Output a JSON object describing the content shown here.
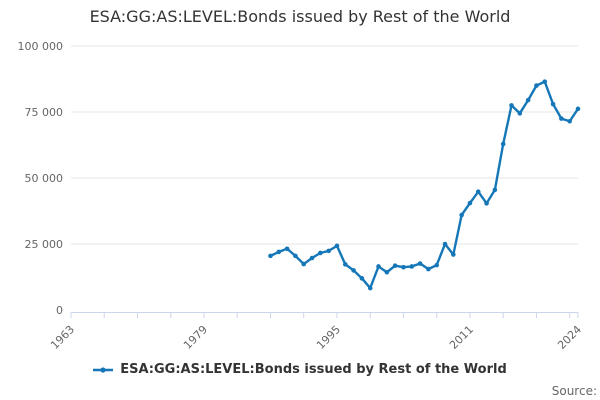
{
  "title": "ESA:GG:AS:LEVEL:Bonds issued by Rest of the World",
  "legend": {
    "label": "ESA:GG:AS:LEVEL:Bonds issued by Rest of the World"
  },
  "source": {
    "label": "Source:"
  },
  "colors": {
    "series": "#1577b8",
    "gridline": "#e6e6e6",
    "axis": "#ccd6eb",
    "tick_label": "#666666",
    "title": "#333333"
  },
  "chart_data": {
    "type": "line",
    "title": "ESA:GG:AS:LEVEL:Bonds issued by Rest of the World",
    "xlabel": "",
    "ylabel": "",
    "grid": "horizontal",
    "legend_position": "bottom",
    "marker": "circle",
    "xlim": [
      1963,
      2024
    ],
    "ylim": [
      0,
      100000
    ],
    "yticks": [
      0,
      25000,
      50000,
      75000,
      100000
    ],
    "ytick_labels": [
      "0",
      "25 000",
      "50 000",
      "75 000",
      "100 000"
    ],
    "xtick_interval": 4,
    "xticks_labeled": [
      1963,
      1979,
      1995,
      2011,
      2024
    ],
    "x": [
      1987,
      1988,
      1989,
      1990,
      1991,
      1992,
      1993,
      1994,
      1995,
      1996,
      1997,
      1998,
      1999,
      2000,
      2001,
      2002,
      2003,
      2004,
      2005,
      2006,
      2007,
      2008,
      2009,
      2010,
      2011,
      2012,
      2013,
      2014,
      2015,
      2016,
      2017,
      2018,
      2019,
      2020,
      2021,
      2022,
      2023,
      2024
    ],
    "series": [
      {
        "name": "ESA:GG:AS:LEVEL:Bonds issued by Rest of the World",
        "values": [
          20500,
          22000,
          23200,
          20500,
          17400,
          19700,
          21600,
          22400,
          24300,
          17300,
          15000,
          12000,
          8300,
          16500,
          14300,
          16800,
          16200,
          16500,
          17600,
          15500,
          17000,
          25000,
          21000,
          36000,
          40500,
          44800,
          40400,
          45500,
          62900,
          77500,
          74500,
          79500,
          85000,
          86500,
          78000,
          72500,
          71500,
          76200
        ]
      }
    ]
  }
}
